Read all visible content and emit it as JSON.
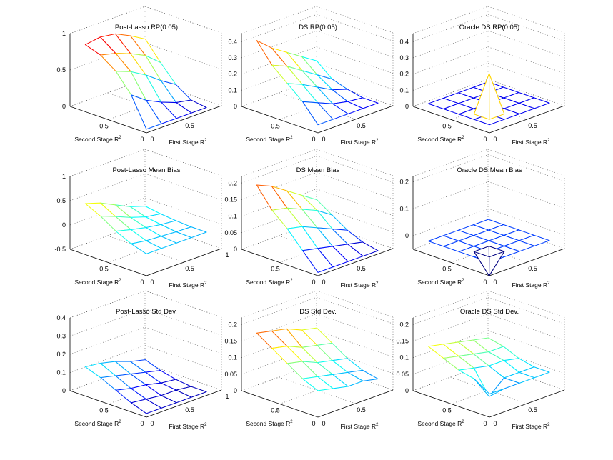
{
  "figure": {
    "panel_count": 9
  },
  "chart_data": [
    {
      "type": "surface",
      "title": "Post-Lasso RP(0.05)",
      "xlabel": "Second Stage R",
      "ylabel": "First Stage R",
      "label_superscript": "2",
      "x_ticks": [
        "0",
        "0.5"
      ],
      "y_ticks": [
        "0",
        "0.5"
      ],
      "z_ticks": [
        "0",
        "0.5",
        "1"
      ],
      "zlim": [
        0,
        1
      ],
      "grid": "on",
      "x": [
        0,
        0.2,
        0.4,
        0.6,
        0.8
      ],
      "y": [
        0,
        0.2,
        0.4,
        0.6,
        0.8
      ],
      "z": [
        [
          0.05,
          0.05,
          0.05,
          0.05,
          0.05
        ],
        [
          0.45,
          0.3,
          0.2,
          0.12,
          0.08
        ],
        [
          0.7,
          0.62,
          0.5,
          0.35,
          0.22
        ],
        [
          0.85,
          0.8,
          0.72,
          0.62,
          0.45
        ],
        [
          0.92,
          0.95,
          0.92,
          0.82,
          0.7
        ]
      ]
    },
    {
      "type": "surface",
      "title": "DS RP(0.05)",
      "xlabel": "Second Stage R",
      "ylabel": "First Stage R",
      "label_superscript": "2",
      "x_ticks": [
        "0",
        "0.5"
      ],
      "y_ticks": [
        "0",
        "0.5"
      ],
      "z_ticks": [
        "0",
        "0.1",
        "0.2",
        "0.3",
        "0.4"
      ],
      "zlim": [
        0,
        0.45
      ],
      "grid": "on",
      "x": [
        0,
        0.2,
        0.4,
        0.6,
        0.8
      ],
      "y": [
        0,
        0.2,
        0.4,
        0.6,
        0.8
      ],
      "z": [
        [
          0.05,
          0.05,
          0.05,
          0.05,
          0.05
        ],
        [
          0.16,
          0.12,
          0.08,
          0.06,
          0.05
        ],
        [
          0.24,
          0.2,
          0.15,
          0.1,
          0.07
        ],
        [
          0.32,
          0.28,
          0.22,
          0.16,
          0.1
        ],
        [
          0.44,
          0.36,
          0.3,
          0.24,
          0.18
        ]
      ]
    },
    {
      "type": "surface",
      "title": "Oracle DS RP(0.05)",
      "xlabel": "Second Stage R",
      "ylabel": "First Stage R",
      "label_superscript": "2",
      "x_ticks": [
        "0",
        "0.5"
      ],
      "y_ticks": [
        "0",
        "0.5"
      ],
      "z_ticks": [
        "0",
        "0.1",
        "0.2",
        "0.3",
        "0.4"
      ],
      "zlim": [
        0,
        0.45
      ],
      "grid": "on",
      "x": [
        0,
        0.2,
        0.4,
        0.6,
        0.8
      ],
      "y": [
        0,
        0.2,
        0.4,
        0.6,
        0.8
      ],
      "z": [
        [
          0.05,
          0.05,
          0.05,
          0.05,
          0.05
        ],
        [
          0.05,
          0.05,
          0.05,
          0.05,
          0.05
        ],
        [
          0.05,
          0.05,
          0.05,
          0.05,
          0.05
        ],
        [
          0.05,
          0.05,
          0.05,
          0.05,
          0.05
        ],
        [
          0.05,
          0.05,
          0.05,
          0.05,
          0.05
        ]
      ],
      "spike": {
        "i": 1,
        "j": 1,
        "z": 0.3
      }
    },
    {
      "type": "surface",
      "title": "Post-Lasso Mean Bias",
      "xlabel": "Second Stage R",
      "ylabel": "First Stage R",
      "label_superscript": "2",
      "x_ticks": [
        "0",
        "0.5"
      ],
      "y_ticks": [
        "0",
        "0.5",
        "1"
      ],
      "z_ticks": [
        "-0.5",
        "0",
        "0.5",
        "1"
      ],
      "zlim": [
        -0.5,
        1
      ],
      "grid": "on",
      "x": [
        0,
        0.2,
        0.4,
        0.6,
        0.8
      ],
      "y": [
        0,
        0.2,
        0.4,
        0.6,
        0.8
      ],
      "z": [
        [
          -0.05,
          -0.05,
          -0.05,
          -0.05,
          -0.05
        ],
        [
          0.05,
          0.0,
          -0.02,
          -0.04,
          -0.05
        ],
        [
          0.2,
          0.12,
          0.05,
          0.0,
          -0.03
        ],
        [
          0.4,
          0.28,
          0.15,
          0.05,
          0.0
        ],
        [
          0.55,
          0.45,
          0.3,
          0.15,
          0.05
        ]
      ]
    },
    {
      "type": "surface",
      "title": "DS Mean Bias",
      "xlabel": "Second Stage R",
      "ylabel": "First Stage R",
      "label_superscript": "2",
      "x_ticks": [
        "0",
        "0.5"
      ],
      "y_ticks": [
        "0",
        "0.5"
      ],
      "z_ticks": [
        "0",
        "0.05",
        "0.1",
        "0.15",
        "0.2"
      ],
      "zlim": [
        0,
        0.22
      ],
      "grid": "on",
      "x": [
        0,
        0.2,
        0.4,
        0.6,
        0.8
      ],
      "y": [
        0,
        0.2,
        0.4,
        0.6,
        0.8
      ],
      "z": [
        [
          0.01,
          0.01,
          0.01,
          0.01,
          0.01
        ],
        [
          0.06,
          0.05,
          0.04,
          0.03,
          0.02
        ],
        [
          0.11,
          0.1,
          0.08,
          0.06,
          0.04
        ],
        [
          0.15,
          0.14,
          0.12,
          0.1,
          0.07
        ],
        [
          0.21,
          0.19,
          0.16,
          0.13,
          0.1
        ]
      ]
    },
    {
      "type": "surface",
      "title": "Oracle DS Mean Bias",
      "xlabel": "Second Stage R",
      "ylabel": "First Stage R",
      "label_superscript": "2",
      "x_ticks": [
        "0",
        "0.5"
      ],
      "y_ticks": [
        "0",
        "0.5"
      ],
      "z_ticks": [
        "0",
        "0.1",
        "0.2"
      ],
      "zlim": [
        -0.05,
        0.22
      ],
      "grid": "on",
      "x": [
        0,
        0.2,
        0.4,
        0.6,
        0.8
      ],
      "y": [
        0,
        0.2,
        0.4,
        0.6,
        0.8
      ],
      "z": [
        [
          0,
          0,
          0,
          0,
          0
        ],
        [
          0,
          0,
          0,
          0,
          0
        ],
        [
          0,
          0,
          0,
          0,
          0
        ],
        [
          0,
          0,
          0,
          0,
          0
        ],
        [
          0,
          0,
          0,
          0,
          0
        ]
      ],
      "spike": {
        "i": 1,
        "j": 1,
        "z": -0.09
      }
    },
    {
      "type": "surface",
      "title": "Post-Lasso Std Dev.",
      "xlabel": "Second Stage R",
      "ylabel": "First Stage R",
      "label_superscript": "2",
      "x_ticks": [
        "0",
        "0.5"
      ],
      "y_ticks": [
        "0",
        "0.5",
        "1"
      ],
      "z_ticks": [
        "0",
        "0.1",
        "0.2",
        "0.3",
        "0.4"
      ],
      "zlim": [
        0,
        0.4
      ],
      "grid": "on",
      "x": [
        0,
        0.2,
        0.4,
        0.6,
        0.8
      ],
      "y": [
        0,
        0.2,
        0.4,
        0.6,
        0.8
      ],
      "z": [
        [
          0.02,
          0.02,
          0.02,
          0.02,
          0.02
        ],
        [
          0.05,
          0.04,
          0.03,
          0.03,
          0.02
        ],
        [
          0.09,
          0.07,
          0.06,
          0.04,
          0.03
        ],
        [
          0.13,
          0.11,
          0.09,
          0.07,
          0.05
        ],
        [
          0.16,
          0.15,
          0.13,
          0.1,
          0.08
        ]
      ]
    },
    {
      "type": "surface",
      "title": "DS Std Dev.",
      "xlabel": "Second Stage R",
      "ylabel": "First Stage R",
      "label_superscript": "2",
      "x_ticks": [
        "0",
        "0.5"
      ],
      "y_ticks": [
        "0",
        "0.5"
      ],
      "z_ticks": [
        "0",
        "0.05",
        "0.1",
        "0.15",
        "0.2"
      ],
      "zlim": [
        0,
        0.22
      ],
      "grid": "on",
      "x": [
        0,
        0.2,
        0.4,
        0.6,
        0.8
      ],
      "y": [
        0,
        0.2,
        0.4,
        0.6,
        0.8
      ],
      "z": [
        [
          0.08,
          0.07,
          0.06,
          0.06,
          0.05
        ],
        [
          0.1,
          0.09,
          0.08,
          0.07,
          0.06
        ],
        [
          0.13,
          0.12,
          0.1,
          0.09,
          0.08
        ],
        [
          0.16,
          0.15,
          0.13,
          0.12,
          0.11
        ],
        [
          0.19,
          0.18,
          0.17,
          0.15,
          0.14
        ]
      ]
    },
    {
      "type": "surface",
      "title": "Oracle DS Std Dev.",
      "xlabel": "Second Stage R",
      "ylabel": "First Stage R",
      "label_superscript": "2",
      "x_ticks": [
        "0",
        "0.5"
      ],
      "y_ticks": [
        "0",
        "0.5"
      ],
      "z_ticks": [
        "0",
        "0.05",
        "0.1",
        "0.15",
        "0.2"
      ],
      "zlim": [
        0,
        0.22
      ],
      "grid": "on",
      "x": [
        0,
        0.2,
        0.4,
        0.6,
        0.8
      ],
      "y": [
        0,
        0.2,
        0.4,
        0.6,
        0.8
      ],
      "z": [
        [
          0.07,
          0.07,
          0.07,
          0.07,
          0.07
        ],
        [
          0.1,
          0.03,
          0.07,
          0.07,
          0.07
        ],
        [
          0.11,
          0.1,
          0.09,
          0.09,
          0.08
        ],
        [
          0.13,
          0.12,
          0.11,
          0.1,
          0.1
        ],
        [
          0.15,
          0.14,
          0.13,
          0.12,
          0.11
        ]
      ]
    }
  ]
}
